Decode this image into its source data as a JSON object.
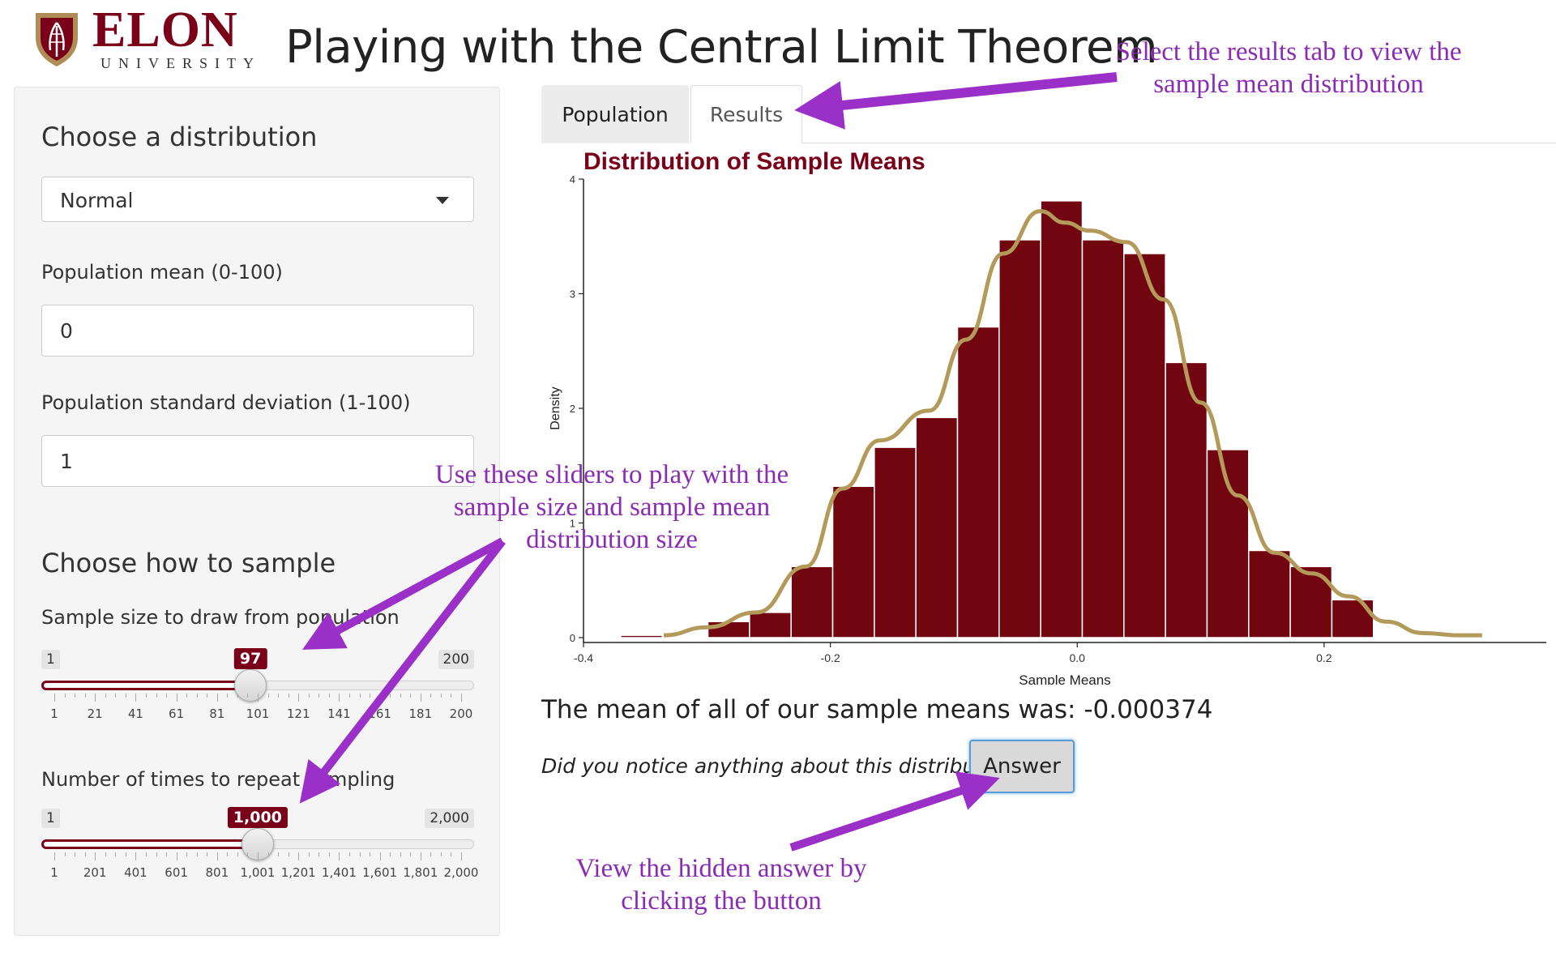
{
  "header": {
    "logo_word": "ELON",
    "logo_sub": "UNIVERSITY",
    "title": "Playing with the Central Limit Theorem"
  },
  "sidebar": {
    "dist_heading": "Choose a distribution",
    "dist_select": {
      "value": "Normal"
    },
    "mean_label": "Population mean (0-100)",
    "mean_value": "0",
    "sd_label": "Population standard deviation (1-100)",
    "sd_value": "1",
    "sample_heading": "Choose how to sample",
    "sample_size": {
      "label": "Sample size to draw from population",
      "min": "1",
      "max": "200",
      "value": "97",
      "value_num": 97,
      "min_num": 1,
      "max_num": 200,
      "tick_labels": [
        "1",
        "21",
        "41",
        "61",
        "81",
        "101",
        "121",
        "141",
        "161",
        "181",
        "200"
      ]
    },
    "repeats": {
      "label": "Number of times to repeat sampling",
      "min": "1",
      "max": "2,000",
      "value": "1,000",
      "value_num": 1000,
      "min_num": 1,
      "max_num": 2000,
      "tick_labels": [
        "1",
        "201",
        "401",
        "601",
        "801",
        "1,001",
        "1,201",
        "1,401",
        "1,601",
        "1,801",
        "2,000"
      ]
    }
  },
  "tabs": [
    {
      "label": "Population",
      "active": false
    },
    {
      "label": "Results",
      "active": true
    }
  ],
  "results": {
    "mean_text": "The mean of all of our sample means was: -0.000374",
    "question": "Did you notice anything about this distribution?",
    "answer_button": "Answer"
  },
  "annotations": {
    "results_tab": [
      "Select the results tab to view the",
      "sample mean distribution"
    ],
    "sliders": [
      "Use these sliders to play with the",
      "sample size and sample mean",
      "distribution size"
    ],
    "answer": [
      "View the hidden answer by",
      "clicking the button"
    ]
  },
  "colors": {
    "brand": "#7a0019",
    "bar": "#720610",
    "density": "#b39a5a",
    "annotation": "#8b2bb5"
  },
  "chart_data": {
    "type": "bar",
    "title": "Distribution of Sample Means",
    "xlabel": "Sample Means",
    "ylabel": "Density",
    "xlim": [
      -0.4,
      0.38
    ],
    "ylim": [
      0,
      4
    ],
    "x_ticks": [
      -0.4,
      -0.2,
      0.0,
      0.2
    ],
    "x_tick_labels": [
      "-0.4",
      "-0.2",
      "0.0",
      "0.2"
    ],
    "y_ticks": [
      0,
      1,
      2,
      3,
      4
    ],
    "y_tick_labels": [
      "0",
      "1",
      "2",
      "3",
      "4"
    ],
    "bin_width": 0.0337,
    "bins": [
      {
        "x0": -0.3698,
        "height": 0.02
      },
      {
        "x0": -0.2992,
        "height": 0.14
      },
      {
        "x0": -0.2655,
        "height": 0.22
      },
      {
        "x0": -0.2318,
        "height": 0.62
      },
      {
        "x0": -0.1981,
        "height": 1.32
      },
      {
        "x0": -0.1644,
        "height": 1.66
      },
      {
        "x0": -0.1307,
        "height": 1.92
      },
      {
        "x0": -0.097,
        "height": 2.71
      },
      {
        "x0": -0.0633,
        "height": 3.47
      },
      {
        "x0": -0.0296,
        "height": 3.81
      },
      {
        "x0": 0.0041,
        "height": 3.47
      },
      {
        "x0": 0.0378,
        "height": 3.35
      },
      {
        "x0": 0.0715,
        "height": 2.4
      },
      {
        "x0": 0.1052,
        "height": 1.64
      },
      {
        "x0": 0.1389,
        "height": 0.76
      },
      {
        "x0": 0.1726,
        "height": 0.62
      },
      {
        "x0": 0.2063,
        "height": 0.33
      }
    ],
    "density_curve": {
      "x": [
        -0.335,
        -0.3,
        -0.26,
        -0.22,
        -0.19,
        -0.16,
        -0.12,
        -0.09,
        -0.06,
        -0.03,
        -0.01,
        0.01,
        0.04,
        0.07,
        0.1,
        0.13,
        0.16,
        0.19,
        0.22,
        0.25,
        0.28,
        0.31,
        0.328
      ],
      "y": [
        0.02,
        0.09,
        0.22,
        0.62,
        1.3,
        1.72,
        1.98,
        2.6,
        3.35,
        3.72,
        3.62,
        3.55,
        3.45,
        2.95,
        2.05,
        1.24,
        0.74,
        0.56,
        0.36,
        0.14,
        0.04,
        0.02,
        0.02
      ]
    }
  }
}
